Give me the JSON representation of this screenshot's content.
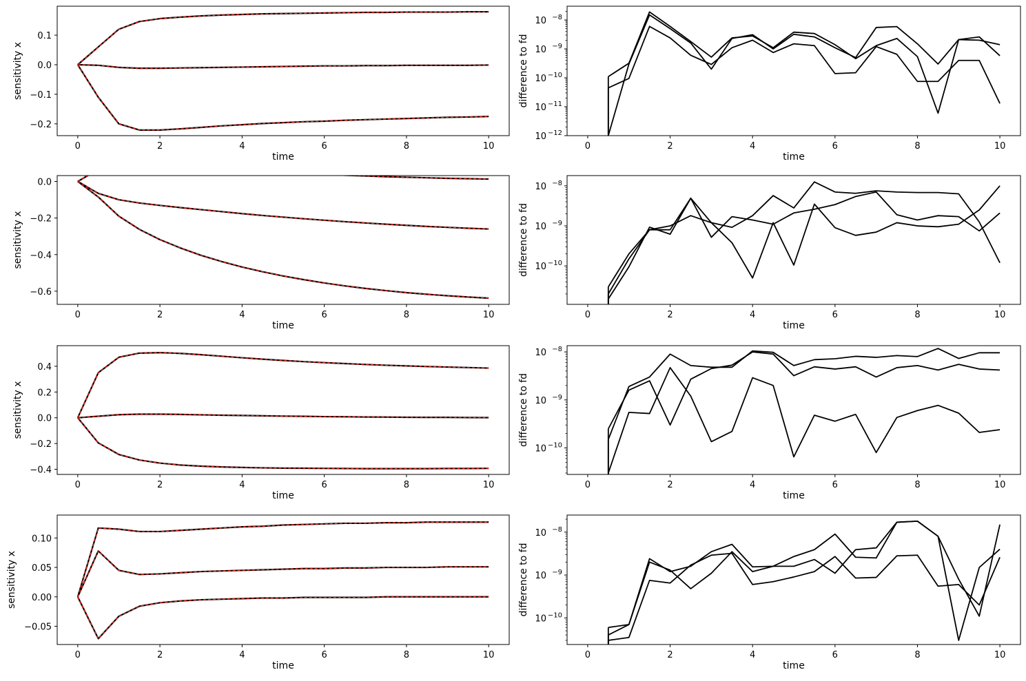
{
  "chart_data": [
    {
      "type": "line",
      "yscale": "linear",
      "xlabel": "time",
      "ylabel": "sensitivity x",
      "xlim": [
        -0.5,
        10.5
      ],
      "ylim": [
        -0.24,
        0.198
      ],
      "xticks": [
        0,
        2,
        4,
        6,
        8,
        10
      ],
      "yticks": [
        -0.2,
        -0.1,
        0.0,
        0.1
      ],
      "ytick_labels": [
        "−0.2",
        "−0.1",
        "0.0",
        "0.1"
      ],
      "x": [
        0,
        0.5,
        1,
        1.5,
        2,
        2.5,
        3,
        3.5,
        4,
        4.5,
        5,
        5.5,
        6,
        6.5,
        7,
        7.5,
        8,
        8.5,
        9,
        9.5,
        10
      ],
      "series": [
        {
          "values": [
            0,
            0.06,
            0.12,
            0.146,
            0.156,
            0.161,
            0.165,
            0.168,
            0.17,
            0.172,
            0.173,
            0.174,
            0.175,
            0.176,
            0.177,
            0.177,
            0.178,
            0.178,
            0.178,
            0.179,
            0.179
          ]
        },
        {
          "values": [
            0,
            -0.002,
            -0.009,
            -0.012,
            -0.012,
            -0.011,
            -0.01,
            -0.009,
            -0.008,
            -0.007,
            -0.006,
            -0.005,
            -0.004,
            -0.004,
            -0.003,
            -0.003,
            -0.002,
            -0.002,
            -0.002,
            -0.002,
            -0.001
          ]
        },
        {
          "values": [
            0,
            -0.11,
            -0.2,
            -0.221,
            -0.221,
            -0.217,
            -0.212,
            -0.207,
            -0.203,
            -0.199,
            -0.196,
            -0.193,
            -0.191,
            -0.188,
            -0.186,
            -0.184,
            -0.182,
            -0.18,
            -0.178,
            -0.177,
            -0.175
          ]
        }
      ]
    },
    {
      "type": "line",
      "yscale": "log",
      "xlabel": "time",
      "ylabel": "difference to fd",
      "xlim": [
        -0.5,
        10.5
      ],
      "ylim": [
        1e-12,
        3e-08
      ],
      "xticks": [
        0,
        2,
        4,
        6,
        8,
        10
      ],
      "yticks": [
        -12,
        -11,
        -10,
        -9,
        -8
      ],
      "x": [
        0.5,
        1,
        1.5,
        2,
        2.5,
        3,
        3.5,
        4,
        4.5,
        5,
        5.5,
        6,
        6.5,
        7,
        7.5,
        8,
        8.5,
        9,
        9.5,
        10
      ],
      "series": [
        {
          "values": [
            1.1e-10,
            3.2e-10,
            1.9e-08,
            6e-09,
            1.8e-09,
            5.2e-10,
            2.4e-09,
            2.8e-09,
            1.1e-09,
            3.8e-09,
            3.4e-09,
            1.4e-09,
            4.6e-10,
            1.3e-09,
            2.3e-09,
            5.4e-10,
            6e-12,
            2.1e-09,
            2.6e-09,
            5.8e-10
          ]
        },
        {
          "values": [
            4.5e-11,
            9.5e-11,
            6e-09,
            2.4e-09,
            6e-10,
            2.9e-10,
            1.1e-09,
            2e-09,
            7.5e-10,
            1.5e-09,
            1.3e-09,
            1.4e-10,
            1.5e-10,
            1.2e-09,
            6.5e-10,
            7.5e-11,
            7.5e-11,
            4e-10,
            4e-10,
            1.3e-11
          ]
        },
        {
          "values": [
            1e-12,
            3e-10,
            1.5e-08,
            5e-09,
            1.6e-09,
            2e-10,
            2.3e-09,
            3.1e-09,
            1e-09,
            3.2e-09,
            2.6e-09,
            1.1e-09,
            5e-10,
            5.5e-09,
            5.9e-09,
            1.5e-09,
            3e-10,
            2.1e-09,
            2e-09,
            1.4e-09
          ]
        }
      ]
    },
    {
      "type": "line",
      "yscale": "linear",
      "xlabel": "time",
      "ylabel": "sensitivity x",
      "xlim": [
        -0.5,
        10.5
      ],
      "ylim": [
        -0.672,
        0.032
      ],
      "xticks": [
        0,
        2,
        4,
        6,
        8,
        10
      ],
      "yticks": [
        -0.6,
        -0.4,
        -0.2,
        0.0
      ],
      "ytick_labels": [
        "−0.6",
        "−0.4",
        "−0.2",
        "0.0"
      ],
      "x": [
        0,
        0.5,
        1,
        1.5,
        2,
        2.5,
        3,
        3.5,
        4,
        4.5,
        5,
        5.5,
        6,
        6.5,
        7,
        7.5,
        8,
        8.5,
        9,
        9.5,
        10
      ],
      "series": [
        {
          "values": [
            0,
            0.065,
            0.1,
            0.102,
            0.095,
            0.087,
            0.078,
            0.07,
            0.062,
            0.055,
            0.049,
            0.043,
            0.038,
            0.034,
            0.03,
            0.026,
            0.023,
            0.02,
            0.017,
            0.015,
            0.013
          ]
        },
        {
          "values": [
            0,
            -0.065,
            -0.1,
            -0.118,
            -0.131,
            -0.143,
            -0.154,
            -0.165,
            -0.176,
            -0.186,
            -0.195,
            -0.204,
            -0.212,
            -0.22,
            -0.227,
            -0.234,
            -0.24,
            -0.246,
            -0.251,
            -0.256,
            -0.26
          ]
        },
        {
          "values": [
            0,
            -0.085,
            -0.19,
            -0.262,
            -0.318,
            -0.364,
            -0.404,
            -0.438,
            -0.468,
            -0.494,
            -0.517,
            -0.537,
            -0.555,
            -0.571,
            -0.585,
            -0.597,
            -0.608,
            -0.617,
            -0.625,
            -0.632,
            -0.638
          ]
        }
      ]
    },
    {
      "type": "line",
      "yscale": "log",
      "xlabel": "time",
      "ylabel": "difference to fd",
      "xlim": [
        -0.5,
        10.5
      ],
      "ylim": [
        1.1e-11,
        1.8e-08
      ],
      "xticks": [
        0,
        2,
        4,
        6,
        8,
        10
      ],
      "yticks": [
        -10,
        -9,
        -8
      ],
      "x": [
        0.5,
        1,
        1.5,
        2,
        2.5,
        3,
        3.5,
        4,
        4.5,
        5,
        5.5,
        6,
        6.5,
        7,
        7.5,
        8,
        8.5,
        9,
        9.5,
        10
      ],
      "series": [
        {
          "values": [
            1.5e-11,
            9.5e-11,
            9.3e-10,
            6.2e-10,
            4.9e-09,
            1.2e-09,
            9.2e-10,
            1.8e-09,
            5.7e-09,
            2.8e-09,
            1.25e-08,
            7e-09,
            6.5e-09,
            7.5e-09,
            7e-09,
            6.8e-09,
            6.8e-09,
            6.3e-09,
            1.25e-09,
            1.2e-10
          ]
        },
        {
          "values": [
            3e-11,
            2e-10,
            8e-10,
            8e-10,
            4.9e-09,
            5.2e-10,
            1.7e-09,
            1.4e-09,
            1.1e-09,
            2.1e-09,
            2.6e-09,
            3.4e-09,
            5.4e-09,
            7e-09,
            1.9e-09,
            1.4e-09,
            1.8e-09,
            1.7e-09,
            7.5e-10,
            2.1e-09
          ]
        },
        {
          "values": [
            2e-11,
            1.5e-10,
            8e-10,
            1e-09,
            1.8e-09,
            1.2e-09,
            3.8e-10,
            5e-11,
            1.2e-09,
            1.05e-10,
            3.5e-09,
            9e-10,
            5.8e-10,
            7e-10,
            1.2e-09,
            1e-09,
            9.5e-10,
            1.1e-09,
            2.5e-09,
            1e-08
          ]
        }
      ]
    },
    {
      "type": "line",
      "yscale": "linear",
      "xlabel": "time",
      "ylabel": "sensitivity x",
      "xlim": [
        -0.5,
        10.5
      ],
      "ylim": [
        -0.44,
        0.56
      ],
      "xticks": [
        0,
        2,
        4,
        6,
        8,
        10
      ],
      "yticks": [
        -0.4,
        -0.2,
        0.0,
        0.2,
        0.4
      ],
      "ytick_labels": [
        "−0.4",
        "−0.2",
        "0.0",
        "0.2",
        "0.4"
      ],
      "x": [
        0,
        0.5,
        1,
        1.5,
        2,
        2.5,
        3,
        3.5,
        4,
        4.5,
        5,
        5.5,
        6,
        6.5,
        7,
        7.5,
        8,
        8.5,
        9,
        9.5,
        10
      ],
      "series": [
        {
          "values": [
            0,
            0.35,
            0.47,
            0.502,
            0.506,
            0.5,
            0.49,
            0.478,
            0.466,
            0.455,
            0.445,
            0.436,
            0.428,
            0.421,
            0.414,
            0.408,
            0.403,
            0.398,
            0.394,
            0.39,
            0.386
          ]
        },
        {
          "values": [
            0,
            0.012,
            0.024,
            0.028,
            0.028,
            0.026,
            0.023,
            0.02,
            0.018,
            0.015,
            0.013,
            0.011,
            0.009,
            0.008,
            0.006,
            0.005,
            0.004,
            0.003,
            0.003,
            0.002,
            0.001
          ]
        },
        {
          "values": [
            0,
            -0.195,
            -0.285,
            -0.328,
            -0.352,
            -0.367,
            -0.376,
            -0.382,
            -0.386,
            -0.389,
            -0.391,
            -0.392,
            -0.393,
            -0.394,
            -0.395,
            -0.395,
            -0.395,
            -0.395,
            -0.394,
            -0.394,
            -0.393
          ]
        }
      ]
    },
    {
      "type": "line",
      "yscale": "log",
      "xlabel": "time",
      "ylabel": "difference to fd",
      "xlim": [
        -0.5,
        10.5
      ],
      "ylim": [
        2.8e-11,
        1.35e-08
      ],
      "xticks": [
        0,
        2,
        4,
        6,
        8,
        10
      ],
      "yticks": [
        -10,
        -9,
        -8
      ],
      "x": [
        0.5,
        1,
        1.5,
        2,
        2.5,
        3,
        3.5,
        4,
        4.5,
        5,
        5.5,
        6,
        6.5,
        7,
        7.5,
        8,
        8.5,
        9,
        9.5,
        10
      ],
      "series": [
        {
          "values": [
            1.5e-10,
            1.9e-09,
            3e-09,
            9e-09,
            5.2e-09,
            4.8e-09,
            4.8e-09,
            1.05e-08,
            9.8e-09,
            5.2e-09,
            6.9e-09,
            7.2e-09,
            8.1e-09,
            7.7e-09,
            8.4e-09,
            8e-09,
            1.18e-08,
            7.3e-09,
            9.6e-09,
            9.6e-09
          ]
        },
        {
          "values": [
            2.5e-10,
            1.6e-09,
            2.5e-09,
            3e-10,
            2.7e-09,
            4.5e-09,
            5.3e-09,
            1e-08,
            9e-09,
            3.2e-09,
            4.9e-09,
            4.4e-09,
            4.9e-09,
            3e-09,
            4.7e-09,
            5.2e-09,
            4.2e-09,
            5.5e-09,
            4.4e-09,
            4.2e-09
          ]
        },
        {
          "values": [
            3e-11,
            5.5e-10,
            5.2e-10,
            4.7e-09,
            1.2e-09,
            1.35e-10,
            2.2e-10,
            2.9e-09,
            2e-09,
            6.5e-11,
            4.8e-10,
            3.6e-10,
            5e-10,
            8e-11,
            4.3e-10,
            6e-10,
            7.7e-10,
            5.3e-10,
            2.1e-10,
            2.4e-10
          ]
        }
      ]
    },
    {
      "type": "line",
      "yscale": "linear",
      "xlabel": "time",
      "ylabel": "sensitivity x",
      "xlim": [
        -0.5,
        10.5
      ],
      "ylim": [
        -0.081,
        0.139
      ],
      "xticks": [
        0,
        2,
        4,
        6,
        8,
        10
      ],
      "yticks": [
        -0.05,
        0.0,
        0.05,
        0.1
      ],
      "ytick_labels": [
        "−0.05",
        "0.00",
        "0.05",
        "0.10"
      ],
      "x": [
        0,
        0.5,
        1,
        1.5,
        2,
        2.5,
        3,
        3.5,
        4,
        4.5,
        5,
        5.5,
        6,
        6.5,
        7,
        7.5,
        8,
        8.5,
        9,
        9.5,
        10
      ],
      "series": [
        {
          "values": [
            0,
            0.117,
            0.115,
            0.111,
            0.111,
            0.113,
            0.115,
            0.117,
            0.119,
            0.12,
            0.122,
            0.123,
            0.124,
            0.125,
            0.125,
            0.126,
            0.126,
            0.127,
            0.127,
            0.127,
            0.127
          ]
        },
        {
          "values": [
            0,
            0.078,
            0.045,
            0.038,
            0.039,
            0.041,
            0.043,
            0.044,
            0.045,
            0.046,
            0.047,
            0.048,
            0.048,
            0.049,
            0.049,
            0.05,
            0.05,
            0.05,
            0.051,
            0.051,
            0.051
          ]
        },
        {
          "values": [
            0,
            -0.071,
            -0.033,
            -0.016,
            -0.01,
            -0.007,
            -0.005,
            -0.004,
            -0.003,
            -0.002,
            -0.002,
            -0.001,
            -0.001,
            -0.001,
            -0.001,
            0.0,
            0.0,
            0.0,
            0.0,
            0.0,
            0.0
          ]
        }
      ]
    },
    {
      "type": "line",
      "yscale": "log",
      "xlabel": "time",
      "ylabel": "difference to fd",
      "xlim": [
        -0.5,
        10.5
      ],
      "ylim": [
        2.4e-11,
        2.5e-08
      ],
      "xticks": [
        0,
        2,
        4,
        6,
        8,
        10
      ],
      "yticks": [
        -10,
        -9,
        -8
      ],
      "x": [
        0.5,
        1,
        1.5,
        2,
        2.5,
        3,
        3.5,
        4,
        4.5,
        5,
        5.5,
        6,
        6.5,
        7,
        7.5,
        8,
        8.5,
        9,
        9.5,
        10
      ],
      "series": [
        {
          "values": [
            6e-11,
            7e-11,
            2.4e-09,
            1.2e-09,
            1.6e-09,
            3.5e-09,
            5.2e-09,
            1.55e-09,
            1.6e-09,
            2.7e-09,
            3.9e-09,
            9e-09,
            2.6e-09,
            2.5e-09,
            1.7e-08,
            1.8e-08,
            8e-09,
            8e-10,
            1.1e-10,
            1.5e-08
          ]
        },
        {
          "values": [
            4e-11,
            7e-11,
            2e-09,
            1.3e-09,
            4.8e-10,
            1.1e-09,
            3.5e-09,
            1.2e-09,
            1.6e-09,
            1.6e-09,
            2.3e-09,
            1.1e-09,
            3.9e-09,
            4.3e-09,
            1.7e-08,
            1.8e-08,
            8e-09,
            3e-11,
            1.5e-09,
            4e-09
          ]
        },
        {
          "values": [
            3e-11,
            3.5e-11,
            7.5e-10,
            6.5e-10,
            1.7e-09,
            2.9e-09,
            3.2e-09,
            6e-10,
            7e-10,
            9e-10,
            1.2e-09,
            2.7e-09,
            8.5e-10,
            8.8e-10,
            2.8e-09,
            2.9e-09,
            5.5e-10,
            6e-10,
            2e-10,
            2.6e-09
          ]
        }
      ]
    }
  ]
}
